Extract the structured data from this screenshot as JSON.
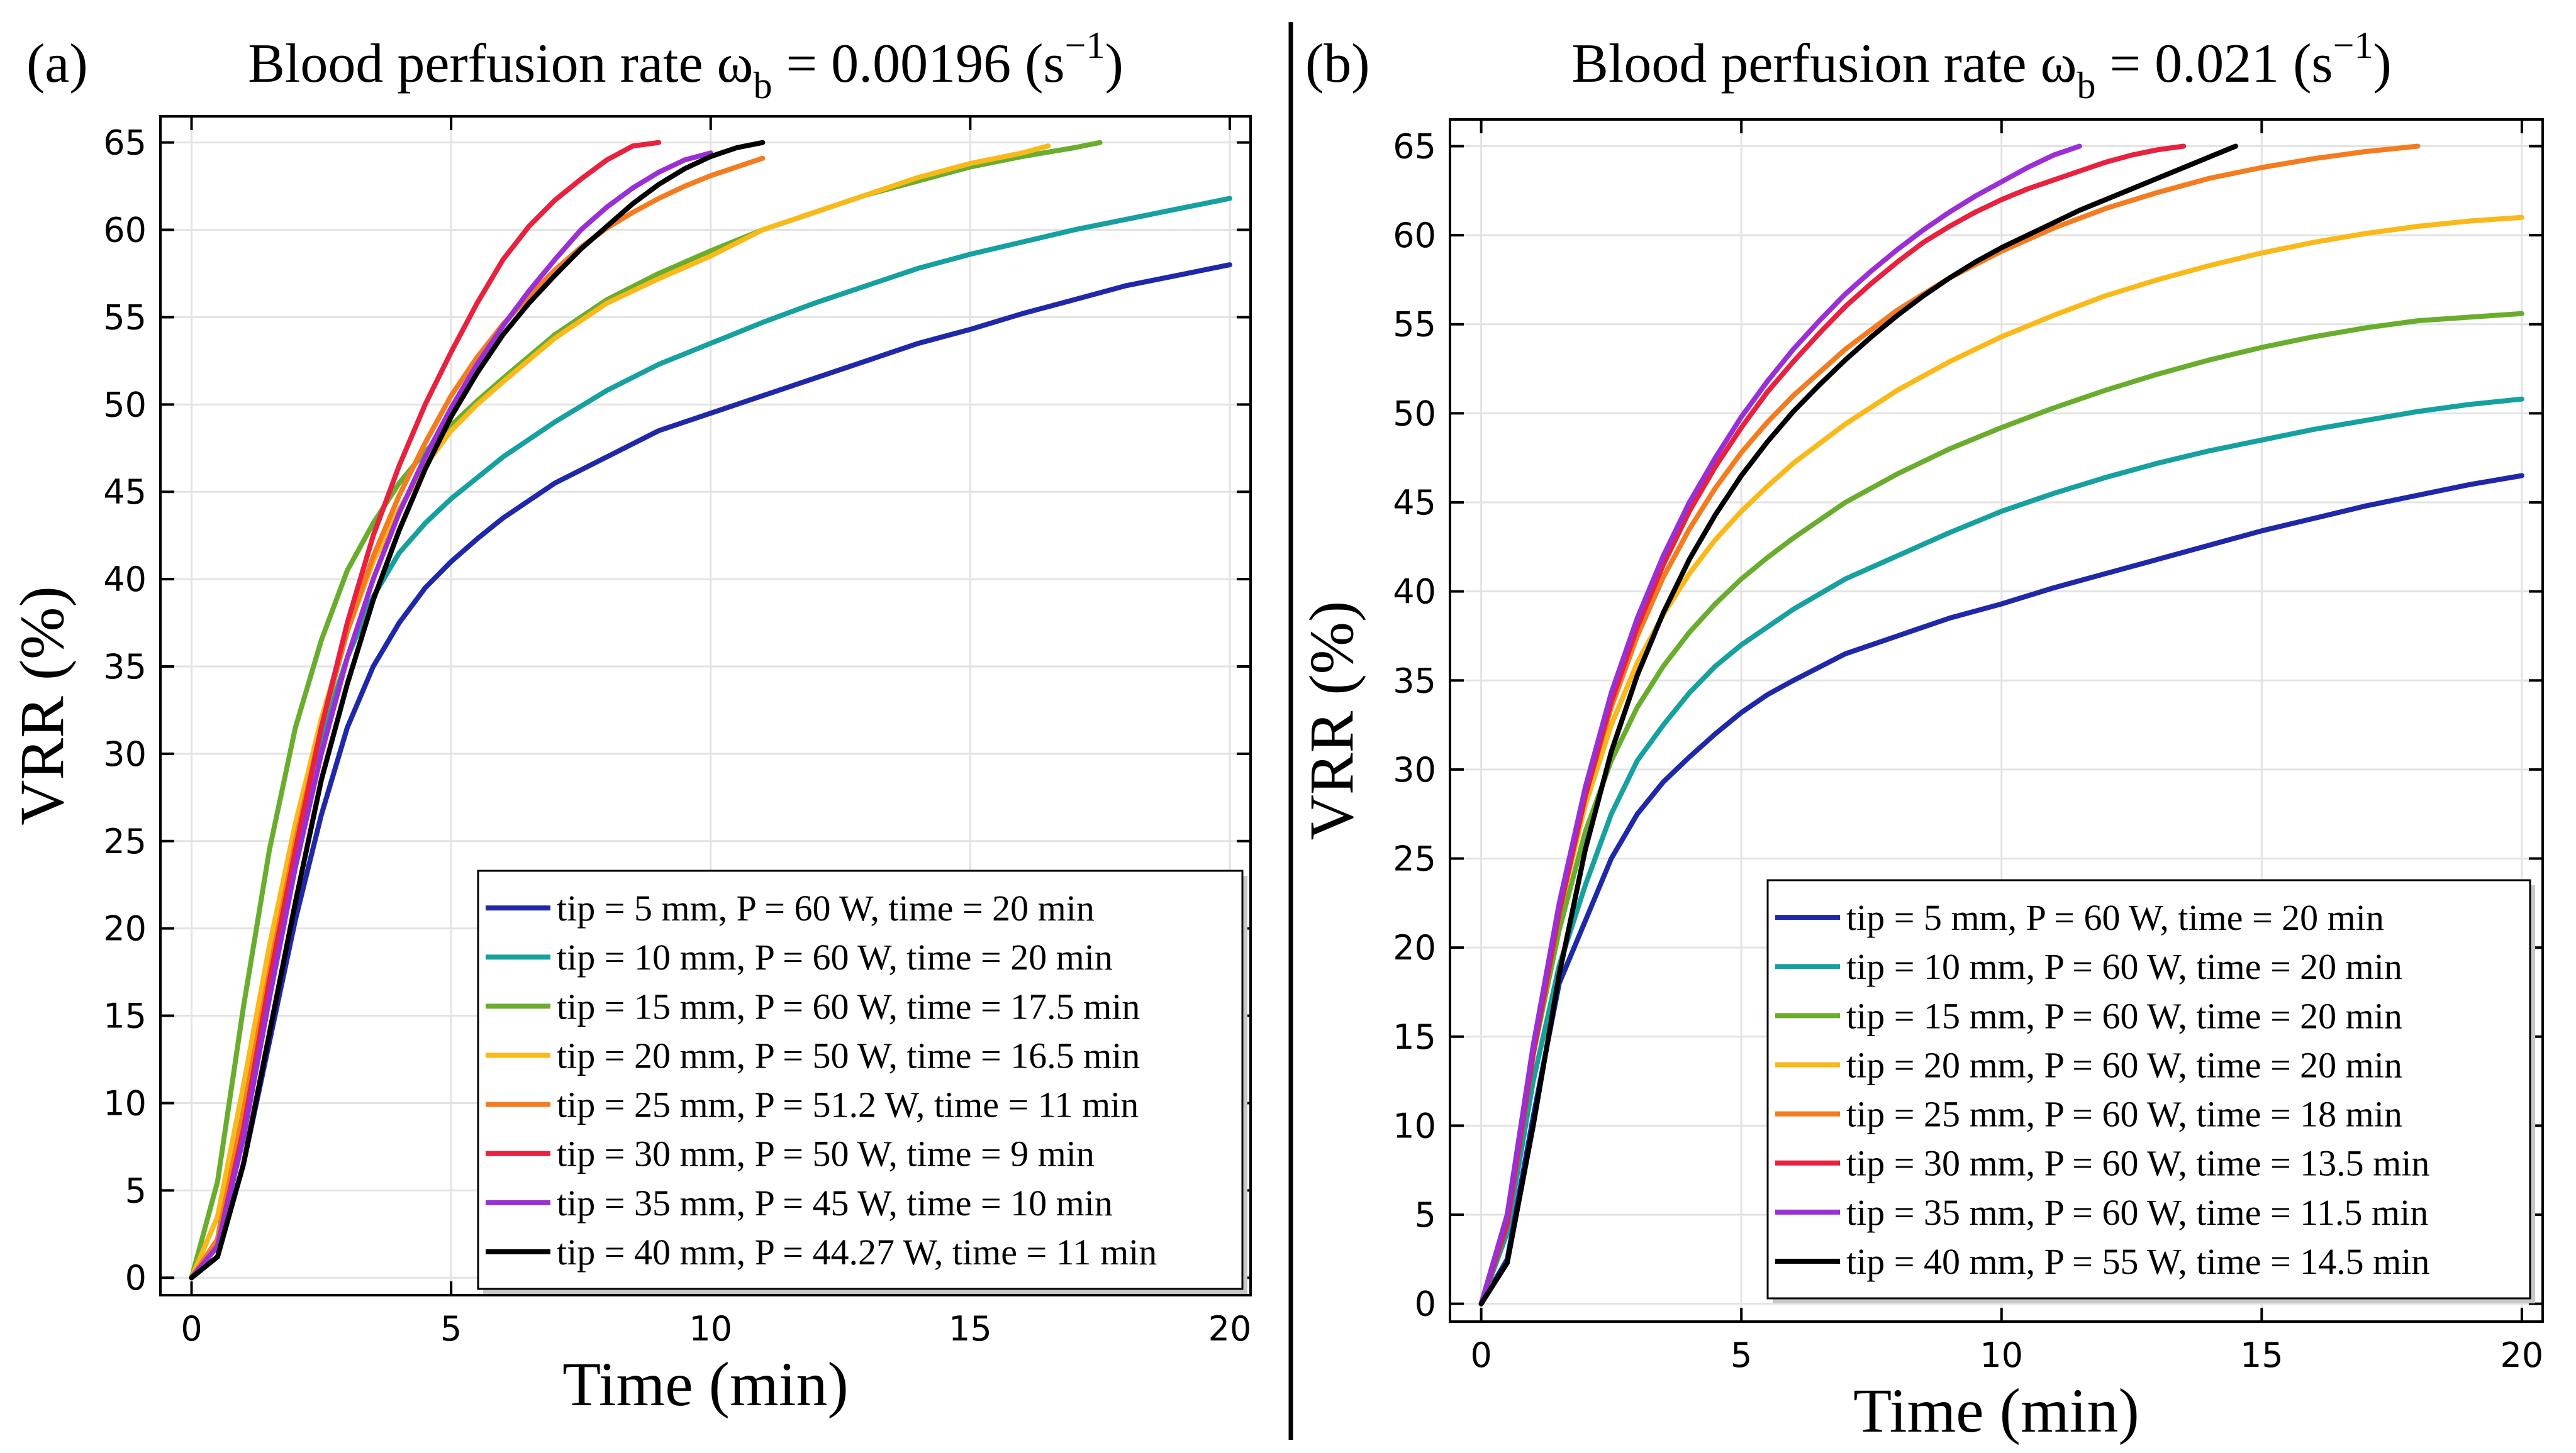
{
  "figure": {
    "background": "#ffffff",
    "divider_color": "#000000"
  },
  "chart_data": [
    {
      "panel_label": "(a)",
      "type": "line",
      "title_prefix": "Blood perfusion rate ω",
      "title_subscript": "b",
      "title_value": " = 0.00196 (s",
      "title_superscript": "−1",
      "title_suffix": ")",
      "xlabel": "Time (min)",
      "ylabel": "VRR (%)",
      "xlim": [
        -0.6,
        20.4
      ],
      "ylim": [
        -1.0,
        66.5
      ],
      "xticks": [
        0,
        5,
        10,
        15,
        20
      ],
      "xtick_labels": [
        "0",
        "5",
        "10",
        "15",
        "20"
      ],
      "yticks": [
        0,
        5,
        10,
        15,
        20,
        25,
        30,
        35,
        40,
        45,
        50,
        55,
        60,
        65
      ],
      "ytick_labels": [
        "0",
        "5",
        "10",
        "15",
        "20",
        "25",
        "30",
        "35",
        "40",
        "45",
        "50",
        "55",
        "60",
        "65"
      ],
      "grid": true,
      "legend_position": "bottom-right",
      "series": [
        {
          "name": "tip = 5 mm, P = 60 W, time = 20 min",
          "color": "#1f28a8",
          "x": [
            0,
            0.5,
            1,
            1.5,
            2,
            2.5,
            3,
            3.5,
            4,
            4.5,
            5,
            5.5,
            6,
            7,
            8,
            9,
            10,
            11,
            12,
            13,
            14,
            15,
            16,
            17,
            18,
            19,
            20
          ],
          "y": [
            0,
            1.2,
            6.5,
            13.5,
            20.5,
            26.5,
            31.5,
            35,
            37.5,
            39.5,
            41,
            42.3,
            43.5,
            45.5,
            47,
            48.5,
            49.5,
            50.5,
            51.5,
            52.5,
            53.5,
            54.3,
            55.2,
            56,
            56.8,
            57.4,
            58
          ]
        },
        {
          "name": "tip = 10 mm, P = 60 W, time = 20 min",
          "color": "#17a0a0",
          "x": [
            0,
            0.5,
            1,
            1.5,
            2,
            2.5,
            3,
            3.5,
            4,
            4.5,
            5,
            5.5,
            6,
            7,
            8,
            9,
            10,
            11,
            12,
            13,
            14,
            15,
            16,
            17,
            18,
            19,
            20
          ],
          "y": [
            0,
            2.2,
            10.5,
            18.5,
            25.5,
            31,
            35.5,
            39,
            41.5,
            43.2,
            44.6,
            45.8,
            47,
            49,
            50.8,
            52.3,
            53.5,
            54.7,
            55.8,
            56.8,
            57.8,
            58.6,
            59.3,
            60,
            60.6,
            61.2,
            61.8
          ]
        },
        {
          "name": "tip = 15 mm, P = 60 W, time = 17.5 min",
          "color": "#6aad2e",
          "x": [
            0,
            0.5,
            1,
            1.5,
            2,
            2.5,
            3,
            3.5,
            4,
            4.5,
            5,
            5.5,
            6,
            7,
            8,
            9,
            10,
            11,
            12,
            13,
            14,
            15,
            16,
            17,
            17.5
          ],
          "y": [
            0,
            5.5,
            15.5,
            24.5,
            31.5,
            36.5,
            40.5,
            43.2,
            45.5,
            47.3,
            48.8,
            50.2,
            51.5,
            54,
            56,
            57.5,
            58.8,
            60,
            61,
            62,
            62.8,
            63.6,
            64.2,
            64.7,
            65
          ]
        },
        {
          "name": "tip = 20 mm, P = 50 W, time = 16.5 min",
          "color": "#f9b91a",
          "x": [
            0,
            0.5,
            1,
            1.5,
            2,
            2.5,
            3,
            3.5,
            4,
            4.5,
            5,
            5.5,
            6,
            7,
            8,
            9,
            10,
            11,
            12,
            13,
            14,
            15,
            16,
            16.5
          ],
          "y": [
            0,
            3.5,
            11,
            19,
            26,
            32,
            37,
            41,
            44,
            46.5,
            48.5,
            50,
            51.3,
            53.8,
            55.8,
            57.2,
            58.5,
            60,
            61,
            62,
            63,
            63.8,
            64.4,
            64.8
          ]
        },
        {
          "name": "tip = 25 mm, P = 51.2 W, time = 11 min",
          "color": "#f47c20",
          "x": [
            0,
            0.5,
            1,
            1.5,
            2,
            2.5,
            3,
            3.5,
            4,
            4.5,
            5,
            5.5,
            6,
            6.5,
            7,
            7.5,
            8,
            8.5,
            9,
            9.5,
            10,
            10.5,
            11
          ],
          "y": [
            0,
            2.2,
            9.5,
            17.5,
            25,
            31.5,
            37,
            41.3,
            44.8,
            47.8,
            50.5,
            52.7,
            54.6,
            56.2,
            57.7,
            59,
            60.1,
            61,
            61.8,
            62.5,
            63.1,
            63.6,
            64.1
          ]
        },
        {
          "name": "tip = 30 mm, P = 50 W, time = 9 min",
          "color": "#e8213e",
          "x": [
            0,
            0.5,
            1,
            1.5,
            2,
            2.5,
            3,
            3.5,
            4,
            4.5,
            5,
            5.5,
            6,
            6.5,
            7,
            7.5,
            8,
            8.5,
            9
          ],
          "y": [
            0,
            1.8,
            8.5,
            17,
            24.5,
            31.5,
            37.5,
            42.5,
            46.5,
            50,
            53,
            55.8,
            58.3,
            60.2,
            61.7,
            62.9,
            64,
            64.8,
            65
          ]
        },
        {
          "name": "tip = 35 mm, P = 45 W, time = 10 min",
          "color": "#9b2fd6",
          "x": [
            0,
            0.5,
            1,
            1.5,
            2,
            2.5,
            3,
            3.5,
            4,
            4.5,
            5,
            5.5,
            6,
            6.5,
            7,
            7.5,
            8,
            8.5,
            9,
            9.5,
            10
          ],
          "y": [
            0,
            1.8,
            8,
            16,
            23.5,
            30,
            35.5,
            40,
            43.8,
            47,
            49.8,
            52.3,
            54.5,
            56.5,
            58.3,
            60,
            61.3,
            62.4,
            63.3,
            64,
            64.4
          ]
        },
        {
          "name": "tip = 40 mm, P = 44.27 W, time = 11 min",
          "color": "#000000",
          "x": [
            0,
            0.5,
            1,
            1.5,
            2,
            2.5,
            3,
            3.5,
            4,
            4.5,
            5,
            5.5,
            6,
            6.5,
            7,
            7.5,
            8,
            8.5,
            9,
            9.5,
            10,
            10.5,
            11
          ],
          "y": [
            0,
            1.2,
            6.5,
            14,
            21.5,
            28.5,
            34,
            38.8,
            42.8,
            46.3,
            49.3,
            51.8,
            54,
            55.8,
            57.4,
            58.9,
            60.2,
            61.5,
            62.6,
            63.5,
            64.2,
            64.7,
            65
          ]
        }
      ]
    },
    {
      "panel_label": "(b)",
      "type": "line",
      "title_prefix": "Blood perfusion rate ω",
      "title_subscript": "b",
      "title_value": " = 0.021 (s",
      "title_superscript": "−1",
      "title_suffix": ")",
      "xlabel": "Time (min)",
      "ylabel": "VRR (%)",
      "xlim": [
        -0.6,
        20.4
      ],
      "ylim": [
        -1.0,
        66.5
      ],
      "xticks": [
        0,
        5,
        10,
        15,
        20
      ],
      "xtick_labels": [
        "0",
        "5",
        "10",
        "15",
        "20"
      ],
      "yticks": [
        0,
        5,
        10,
        15,
        20,
        25,
        30,
        35,
        40,
        45,
        50,
        55,
        60,
        65
      ],
      "ytick_labels": [
        "0",
        "5",
        "10",
        "15",
        "20",
        "25",
        "30",
        "35",
        "40",
        "45",
        "50",
        "55",
        "60",
        "65"
      ],
      "grid": true,
      "legend_position": "bottom-right",
      "series": [
        {
          "name": "tip = 5 mm, P = 60 W, time = 20 min",
          "color": "#1f28a8",
          "x": [
            0,
            0.5,
            1,
            1.5,
            2,
            2.5,
            3,
            3.5,
            4,
            4.5,
            5,
            5.5,
            6,
            7,
            8,
            9,
            10,
            11,
            12,
            13,
            14,
            15,
            16,
            17,
            18,
            19,
            20
          ],
          "y": [
            0,
            2.5,
            10.5,
            18,
            21.5,
            25,
            27.5,
            29.3,
            30.7,
            32,
            33.2,
            34.2,
            35,
            36.5,
            37.5,
            38.5,
            39.3,
            40.2,
            41,
            41.8,
            42.6,
            43.4,
            44.1,
            44.8,
            45.4,
            46,
            46.5
          ]
        },
        {
          "name": "tip = 10 mm, P = 60 W, time = 20 min",
          "color": "#17a0a0",
          "x": [
            0,
            0.5,
            1,
            1.5,
            2,
            2.5,
            3,
            3.5,
            4,
            4.5,
            5,
            5.5,
            6,
            7,
            8,
            9,
            10,
            11,
            12,
            13,
            14,
            15,
            16,
            17,
            18,
            19,
            20
          ],
          "y": [
            0,
            4,
            12.5,
            19,
            23.5,
            27.5,
            30.5,
            32.5,
            34.3,
            35.8,
            37,
            38,
            39,
            40.7,
            42,
            43.3,
            44.5,
            45.5,
            46.4,
            47.2,
            47.9,
            48.5,
            49.1,
            49.6,
            50.1,
            50.5,
            50.8
          ]
        },
        {
          "name": "tip = 15 mm, P = 60 W, time = 20 min",
          "color": "#6aad2e",
          "x": [
            0,
            0.5,
            1,
            1.5,
            2,
            2.5,
            3,
            3.5,
            4,
            4.5,
            5,
            5.5,
            6,
            7,
            8,
            9,
            10,
            11,
            12,
            13,
            14,
            15,
            16,
            17,
            18,
            19,
            20
          ],
          "y": [
            0,
            5,
            14,
            21,
            26.5,
            30.5,
            33.5,
            35.8,
            37.7,
            39.3,
            40.7,
            41.9,
            43,
            45,
            46.6,
            48,
            49.2,
            50.3,
            51.3,
            52.2,
            53,
            53.7,
            54.3,
            54.8,
            55.2,
            55.4,
            55.6
          ]
        },
        {
          "name": "tip = 20 mm, P = 60 W, time = 20 min",
          "color": "#f9b91a",
          "x": [
            0,
            0.5,
            1,
            1.5,
            2,
            2.5,
            3,
            3.5,
            4,
            4.5,
            5,
            5.5,
            6,
            7,
            8,
            9,
            10,
            11,
            12,
            13,
            14,
            15,
            16,
            17,
            18,
            19,
            20
          ],
          "y": [
            0,
            5,
            14.5,
            22,
            28,
            32.5,
            36,
            38.7,
            41,
            42.9,
            44.5,
            45.9,
            47.2,
            49.4,
            51.3,
            52.9,
            54.3,
            55.5,
            56.6,
            57.5,
            58.3,
            59,
            59.6,
            60.1,
            60.5,
            60.8,
            61
          ]
        },
        {
          "name": "tip = 25 mm, P = 60 W, time = 18 min",
          "color": "#f47c20",
          "x": [
            0,
            0.5,
            1,
            1.5,
            2,
            2.5,
            3,
            3.5,
            4,
            4.5,
            5,
            5.5,
            6,
            7,
            8,
            9,
            10,
            11,
            12,
            13,
            14,
            15,
            16,
            17,
            18
          ],
          "y": [
            0,
            4.5,
            14,
            22,
            28.5,
            33.5,
            37.5,
            40.8,
            43.5,
            45.8,
            47.8,
            49.5,
            51,
            53.6,
            55.8,
            57.6,
            59.1,
            60.4,
            61.5,
            62.4,
            63.2,
            63.8,
            64.3,
            64.7,
            65
          ]
        },
        {
          "name": "tip = 30 mm, P = 60 W, time = 13.5 min",
          "color": "#e8213e",
          "x": [
            0,
            0.5,
            1,
            1.5,
            2,
            2.5,
            3,
            3.5,
            4,
            4.5,
            5,
            5.5,
            6,
            6.5,
            7,
            7.5,
            8,
            8.5,
            9,
            9.5,
            10,
            10.5,
            11,
            11.5,
            12,
            12.5,
            13,
            13.5
          ],
          "y": [
            0,
            4.5,
            14,
            22,
            28.5,
            33.8,
            38,
            41.5,
            44.5,
            47,
            49.2,
            51.2,
            52.9,
            54.5,
            56,
            57.3,
            58.5,
            59.6,
            60.5,
            61.3,
            62,
            62.6,
            63.1,
            63.6,
            64.1,
            64.5,
            64.8,
            65
          ]
        },
        {
          "name": "tip = 35 mm, P = 60 W, time = 11.5 min",
          "color": "#9b2fd6",
          "x": [
            0,
            0.5,
            1,
            1.5,
            2,
            2.5,
            3,
            3.5,
            4,
            4.5,
            5,
            5.5,
            6,
            6.5,
            7,
            7.5,
            8,
            8.5,
            9,
            9.5,
            10,
            10.5,
            11,
            11.5
          ],
          "y": [
            0,
            5,
            14.5,
            22.5,
            29,
            34.3,
            38.5,
            42,
            45,
            47.5,
            49.8,
            51.8,
            53.6,
            55.2,
            56.7,
            58,
            59.2,
            60.3,
            61.3,
            62.2,
            63,
            63.8,
            64.5,
            65
          ]
        },
        {
          "name": "tip = 40 mm, P = 55 W, time = 14.5 min",
          "color": "#000000",
          "x": [
            0,
            0.5,
            1,
            1.5,
            2,
            2.5,
            3,
            3.5,
            4,
            4.5,
            5,
            5.5,
            6,
            6.5,
            7,
            7.5,
            8,
            8.5,
            9,
            9.5,
            10,
            10.5,
            11,
            11.5,
            12,
            12.5,
            13,
            13.5,
            14,
            14.5
          ],
          "y": [
            0,
            2.3,
            10,
            18.5,
            25.5,
            31,
            35.3,
            38.8,
            41.8,
            44.3,
            46.5,
            48.4,
            50.1,
            51.6,
            53,
            54.3,
            55.5,
            56.6,
            57.6,
            58.5,
            59.3,
            60,
            60.7,
            61.4,
            62,
            62.6,
            63.2,
            63.8,
            64.4,
            65
          ]
        }
      ]
    }
  ]
}
